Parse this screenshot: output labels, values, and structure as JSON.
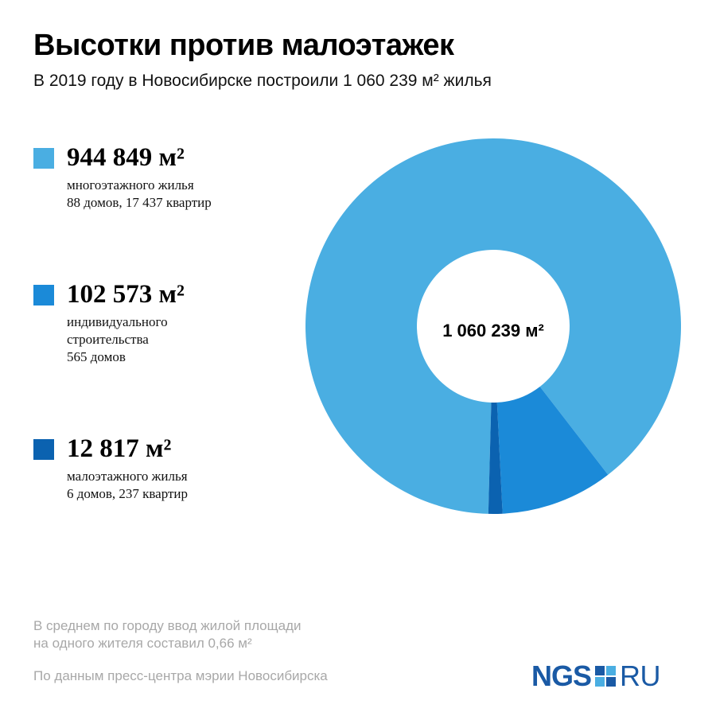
{
  "header": {
    "title": "Высотки против малоэтажек",
    "subtitle": "В 2019 году в Новосибирске построили 1 060 239 м² жилья"
  },
  "legend": [
    {
      "value": "944 849 м²",
      "lines": [
        "многоэтажного жилья",
        "88 домов, 17 437 квартир"
      ],
      "color": "#4aaee2"
    },
    {
      "value": "102 573 м²",
      "lines": [
        "индивидуального",
        "строительства",
        "565 домов"
      ],
      "color": "#1b8ad8"
    },
    {
      "value": "12 817 м²",
      "lines": [
        "малоэтажного жилья",
        "6 домов, 237 квартир"
      ],
      "color": "#0b62b0"
    }
  ],
  "chart_data": {
    "type": "pie",
    "donut": true,
    "center_label": "1 060 239 м²",
    "total": 1060239,
    "slices": [
      {
        "label": "многоэтажного жилья",
        "value": 944849,
        "color": "#4aaee2"
      },
      {
        "label": "индивидуального строительства",
        "value": 102573,
        "color": "#1b8ad8"
      },
      {
        "label": "малоэтажного жилья",
        "value": 12817,
        "color": "#0b62b0"
      }
    ]
  },
  "footer": {
    "note_lines": [
      "В среднем по городу ввод жилой площади",
      "на одного жителя составил 0,66 м²"
    ],
    "source": "По данным пресс-центра мэрии Новосибирска"
  },
  "logo": {
    "left_text": "NGS",
    "right_text": "RU",
    "mark_colors": [
      "#1a5aa5",
      "#4aaee2",
      "#4aaee2",
      "#1a5aa5"
    ]
  }
}
